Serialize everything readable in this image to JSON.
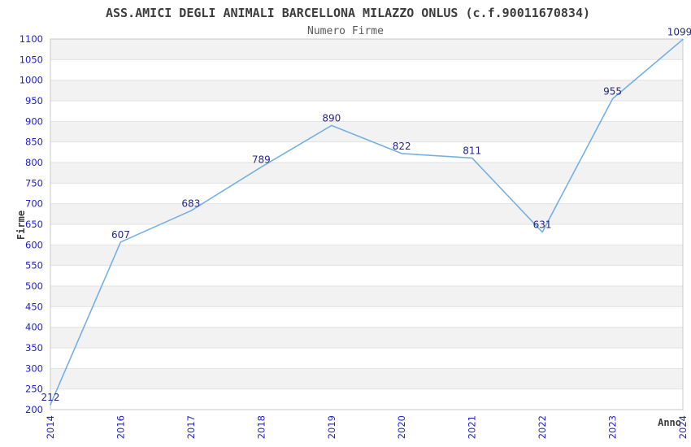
{
  "chart_data": {
    "type": "line",
    "title": "ASS.AMICI DEGLI ANIMALI BARCELLONA MILAZZO ONLUS (c.f.90011670834)",
    "subtitle": "Numero Firme",
    "xlabel": "Anno",
    "ylabel": "Firme",
    "categories": [
      "2014",
      "2016",
      "2017",
      "2018",
      "2019",
      "2020",
      "2021",
      "2022",
      "2023",
      "2024"
    ],
    "values": [
      212,
      607,
      683,
      789,
      890,
      822,
      811,
      631,
      955,
      1099
    ],
    "data_labels_shown": true,
    "ylim": [
      200,
      1100
    ],
    "ytick_step": 50,
    "grid": true,
    "banded_background": true,
    "legend": "none",
    "colors": {
      "line": "#74b0e4",
      "tick_label": "#2222cc",
      "data_label": "#262688",
      "band": "#f2f2f2",
      "gridline": "#e2e2e2",
      "plot_border": "#c8c8c8",
      "title": "#3c3c3c",
      "subtitle": "#595959",
      "axis_title": "#3c3c3c",
      "background": "#ffffff"
    }
  }
}
